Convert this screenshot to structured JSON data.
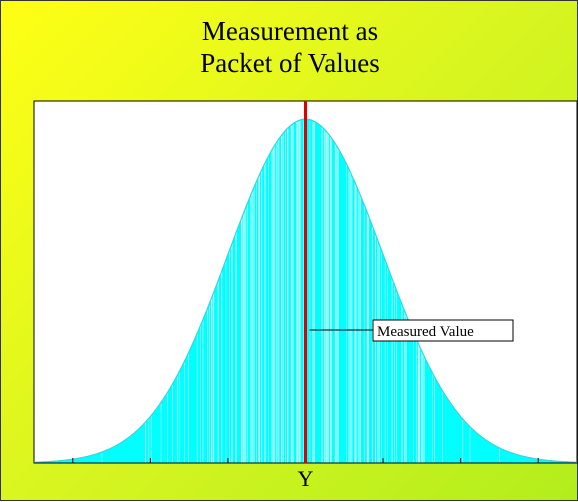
{
  "slide": {
    "title_line1": "Measurement as",
    "title_line2": "Packet of Values",
    "background_colors": [
      "#ffff14",
      "#b2ee1c"
    ]
  },
  "chart_data": {
    "type": "area",
    "distribution": "normal",
    "mean": 0,
    "std_dev": 1,
    "xlim": [
      -3.5,
      3.5
    ],
    "ylim": [
      0,
      0.42
    ],
    "x_ticks": [
      -3,
      -2,
      -1,
      0,
      1,
      2,
      3
    ],
    "x_tick_labels": [
      "",
      "",
      "",
      "Y",
      "",
      "",
      ""
    ],
    "measured_value_x": 0,
    "annotation": "Measured Value",
    "grid": false,
    "colors": {
      "fill": "#00ffff",
      "outline": "#3ad5e2",
      "marker": "#e00000",
      "axis": "#000000",
      "plot_background": "#ffffff"
    }
  }
}
